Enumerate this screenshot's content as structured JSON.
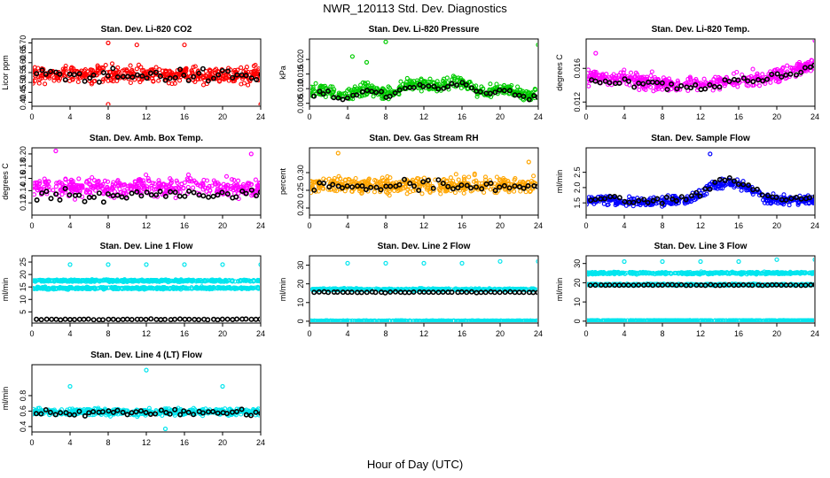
{
  "title": "NWR_120113  Std. Dev. Diagnostics",
  "xlabel": "Hour of Day (UTC)",
  "colors": {
    "red": "#ff0000",
    "green": "#00cc00",
    "magenta": "#ff00ff",
    "orange": "#ffa500",
    "blue": "#0000ff",
    "cyan": "#00e5ee",
    "black": "#000000"
  },
  "chart_data": [
    {
      "type": "scatter",
      "title": "Stan. Dev. Li-820 CO2",
      "ylabel": "Licor ppm",
      "xlim": [
        0,
        24
      ],
      "ylim": [
        0.38,
        0.72
      ],
      "xticks": [
        "0",
        "4",
        "8",
        "12",
        "16",
        "20",
        "24"
      ],
      "yticks": [
        "0.40",
        "0.45",
        "0.50",
        "0.55",
        "0.60",
        "0.65",
        "0.70"
      ],
      "series": [
        {
          "color": "red",
          "base": 0.54,
          "spread": 0.045,
          "trend": "flat",
          "outliers": [
            [
              8,
              0.7
            ],
            [
              11,
              0.69
            ],
            [
              16,
              0.69
            ],
            [
              24,
              0.39
            ],
            [
              8,
              0.39
            ]
          ]
        },
        {
          "color": "black",
          "base": 0.535,
          "spread": 0.035,
          "trend": "flat",
          "hourly": true
        }
      ]
    },
    {
      "type": "scatter",
      "title": "Stan. Dev. Li-820 Pressure",
      "ylabel": "kPa",
      "xlim": [
        0,
        24
      ],
      "ylim": [
        0.004,
        0.027
      ],
      "xticks": [
        "0",
        "4",
        "8",
        "12",
        "16",
        "20",
        "24"
      ],
      "yticks": [
        "0.005",
        "0.010",
        "0.015",
        "0.020"
      ],
      "series": [
        {
          "color": "green",
          "base": 0.0085,
          "spread": 0.0022,
          "trend": "pressure",
          "outliers": [
            [
              8,
              0.026
            ],
            [
              24,
              0.025
            ],
            [
              4.5,
              0.021
            ],
            [
              6,
              0.019
            ]
          ]
        },
        {
          "color": "black",
          "base": 0.0078,
          "spread": 0.0012,
          "trend": "pressure",
          "hourly": true
        }
      ]
    },
    {
      "type": "scatter",
      "title": "Stan. Dev. Li-820 Temp.",
      "ylabel": "degrees C",
      "xlim": [
        0,
        24
      ],
      "ylim": [
        0.0115,
        0.0195
      ],
      "xticks": [
        "0",
        "4",
        "8",
        "12",
        "16",
        "20",
        "24"
      ],
      "yticks": [
        "0.012",
        "0.016"
      ],
      "series": [
        {
          "color": "magenta",
          "base": 0.0145,
          "spread": 0.0009,
          "trend": "temp",
          "outliers": [
            [
              24,
              0.0193
            ],
            [
              1,
              0.0178
            ]
          ]
        },
        {
          "color": "black",
          "base": 0.0143,
          "spread": 0.0006,
          "trend": "temp",
          "hourly": true
        }
      ]
    },
    {
      "type": "scatter",
      "title": "Stan. Dev. Amb. Box Temp.",
      "ylabel": "degrees C",
      "xlim": [
        0,
        24
      ],
      "ylim": [
        0.1,
        0.21
      ],
      "xticks": [
        "0",
        "4",
        "8",
        "12",
        "16",
        "20",
        "24"
      ],
      "yticks": [
        "0.12",
        "0.14",
        "0.16",
        "0.18",
        "0.20"
      ],
      "series": [
        {
          "color": "magenta",
          "base": 0.145,
          "spread": 0.016,
          "trend": "flat",
          "outliers": [
            [
              2.5,
              0.205
            ],
            [
              23,
              0.2
            ]
          ]
        },
        {
          "color": "black",
          "base": 0.133,
          "spread": 0.01,
          "trend": "flat",
          "hourly": true
        }
      ]
    },
    {
      "type": "scatter",
      "title": "Stan. Dev. Gas Stream RH",
      "ylabel": "percent",
      "xlim": [
        0,
        24
      ],
      "ylim": [
        0.18,
        0.37
      ],
      "xticks": [
        "0",
        "4",
        "8",
        "12",
        "16",
        "20",
        "24"
      ],
      "yticks": [
        "0.20",
        "0.25",
        "0.30"
      ],
      "series": [
        {
          "color": "orange",
          "base": 0.265,
          "spread": 0.024,
          "trend": "flat",
          "outliers": [
            [
              3,
              0.355
            ],
            [
              23,
              0.33
            ]
          ]
        },
        {
          "color": "black",
          "base": 0.262,
          "spread": 0.018,
          "trend": "flat",
          "hourly": true
        }
      ]
    },
    {
      "type": "scatter",
      "title": "Stan. Dev. Sample Flow",
      "ylabel": "ml/min",
      "xlim": [
        0,
        24
      ],
      "ylim": [
        1.1,
        3.3
      ],
      "xticks": [
        "0",
        "4",
        "8",
        "12",
        "16",
        "20",
        "24"
      ],
      "yticks": [
        "1.5",
        "2.0",
        "2.5"
      ],
      "series": [
        {
          "color": "blue",
          "base": 1.6,
          "spread": 0.16,
          "trend": "flow",
          "outliers": [
            [
              13,
              3.1
            ]
          ]
        },
        {
          "color": "black",
          "base": 1.65,
          "spread": 0.12,
          "trend": "flow",
          "hourly": true
        }
      ]
    },
    {
      "type": "scatter",
      "title": "Stan. Dev. Line 1 Flow",
      "ylabel": "ml/min",
      "xlim": [
        0,
        24
      ],
      "ylim": [
        0.5,
        27.5
      ],
      "xticks": [
        "0",
        "4",
        "8",
        "12",
        "16",
        "20",
        "24"
      ],
      "yticks": [
        "5",
        "10",
        "15",
        "20",
        "25"
      ],
      "series": [
        {
          "color": "cyan",
          "base": 17.5,
          "spread": 0.45,
          "trend": "flat",
          "outliers": [
            [
              4,
              24
            ],
            [
              8,
              24
            ],
            [
              12,
              24
            ],
            [
              16,
              24
            ],
            [
              20,
              24
            ],
            [
              24,
              24
            ]
          ]
        },
        {
          "color": "cyan",
          "base": 14.5,
          "spread": 0.45,
          "trend": "flat"
        },
        {
          "color": "black",
          "base": 2.0,
          "spread": 0.2,
          "trend": "flat",
          "hourly": true
        }
      ]
    },
    {
      "type": "scatter",
      "title": "Stan. Dev. Line 2 Flow",
      "ylabel": "ml/min",
      "xlim": [
        0,
        24
      ],
      "ylim": [
        -1,
        35
      ],
      "xticks": [
        "0",
        "4",
        "8",
        "12",
        "16",
        "20",
        "24"
      ],
      "yticks": [
        "0",
        "10",
        "20",
        "30"
      ],
      "series": [
        {
          "color": "cyan",
          "base": 17.0,
          "spread": 0.6,
          "trend": "flat",
          "outliers": [
            [
              4,
              31
            ],
            [
              8,
              31
            ],
            [
              12,
              31
            ],
            [
              16,
              31
            ],
            [
              20,
              32
            ],
            [
              24,
              32
            ]
          ]
        },
        {
          "color": "cyan",
          "base": 0.2,
          "spread": 0.15,
          "trend": "flat"
        },
        {
          "color": "black",
          "base": 15.5,
          "spread": 0.25,
          "trend": "flat",
          "hourly": true
        }
      ]
    },
    {
      "type": "scatter",
      "title": "Stan. Dev. Line 3 Flow",
      "ylabel": "ml/min",
      "xlim": [
        0,
        24
      ],
      "ylim": [
        -1,
        34
      ],
      "xticks": [
        "0",
        "4",
        "8",
        "12",
        "16",
        "20",
        "24"
      ],
      "yticks": [
        "0",
        "10",
        "20",
        "30"
      ],
      "series": [
        {
          "color": "cyan",
          "base": 25.0,
          "spread": 0.6,
          "trend": "flat",
          "outliers": [
            [
              4,
              31
            ],
            [
              8,
              31
            ],
            [
              12,
              31
            ],
            [
              16,
              31
            ],
            [
              20,
              32
            ],
            [
              24,
              32
            ]
          ]
        },
        {
          "color": "cyan",
          "base": 19.0,
          "spread": 0.4,
          "trend": "flat"
        },
        {
          "color": "cyan",
          "base": 0.3,
          "spread": 0.15,
          "trend": "flat"
        },
        {
          "color": "black",
          "base": 18.8,
          "spread": 0.2,
          "trend": "flat",
          "hourly": true
        }
      ]
    },
    {
      "type": "scatter",
      "title": "Stan. Dev. Line 4 (LT) Flow",
      "ylabel": "ml/min",
      "xlim": [
        0,
        24
      ],
      "ylim": [
        0.33,
        1.2
      ],
      "xticks": [
        "0",
        "4",
        "8",
        "12",
        "16",
        "20",
        "24"
      ],
      "yticks": [
        "0.4",
        "0.6",
        "0.8"
      ],
      "series": [
        {
          "color": "cyan",
          "base": 0.59,
          "spread": 0.05,
          "trend": "flat",
          "outliers": [
            [
              12,
              1.13
            ],
            [
              4,
              0.92
            ],
            [
              20,
              0.92
            ],
            [
              14,
              0.37
            ]
          ]
        },
        {
          "color": "black",
          "base": 0.58,
          "spread": 0.04,
          "trend": "flat",
          "hourly": true
        }
      ]
    }
  ]
}
